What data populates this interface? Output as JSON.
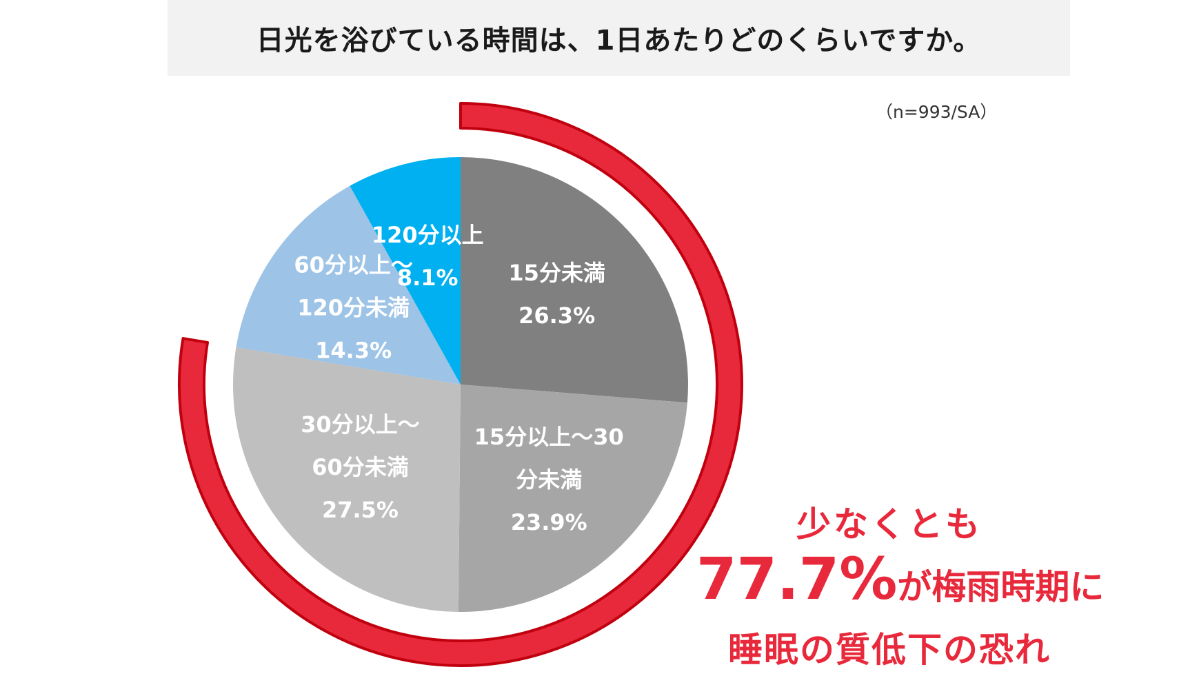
{
  "title": "日光を浴びている時間は、1日あたりどのくらいですか。",
  "note": "（n=993/SA）",
  "callout": {
    "line1": "少なくとも",
    "percent": "77.7%",
    "line2_rest": "が梅雨時期に",
    "line3": "睡眠の質低下の恐れ"
  },
  "chart_data": {
    "type": "pie",
    "title": "日光を浴びている時間は、1日あたりどのくらいですか。",
    "start_angle_deg": 0,
    "direction": "clockwise",
    "slices": [
      {
        "name": "15分未満",
        "label_lines": [
          "15分未満"
        ],
        "value": 26.3,
        "value_label": "26.3%",
        "color": "#808080",
        "text_color": "#ffffff"
      },
      {
        "name": "15分以上～30分未満",
        "label_lines": [
          "15分以上～30",
          "分未満"
        ],
        "value": 23.9,
        "value_label": "23.9%",
        "color": "#a6a6a6",
        "text_color": "#ffffff"
      },
      {
        "name": "30分以上～60分未満",
        "label_lines": [
          "30分以上～",
          "60分未満"
        ],
        "value": 27.5,
        "value_label": "27.5%",
        "color": "#bfbfbf",
        "text_color": "#ffffff"
      },
      {
        "name": "60分以上～120分未満",
        "label_lines": [
          "60分以上～",
          "120分未満"
        ],
        "value": 14.3,
        "value_label": "14.3%",
        "color": "#9dc3e6",
        "text_color": "#ffffff"
      },
      {
        "name": "120分以上",
        "label_lines": [
          "120分以上"
        ],
        "value": 8.1,
        "value_label": "8.1%",
        "color": "#00b0f0",
        "text_color": "#ffffff"
      }
    ],
    "highlight": {
      "covers": [
        "15分未満",
        "15分以上～30分未満",
        "30分以上～60分未満"
      ],
      "total": 77.7,
      "color": "#e8293b",
      "border_color": "#c0000e"
    }
  }
}
